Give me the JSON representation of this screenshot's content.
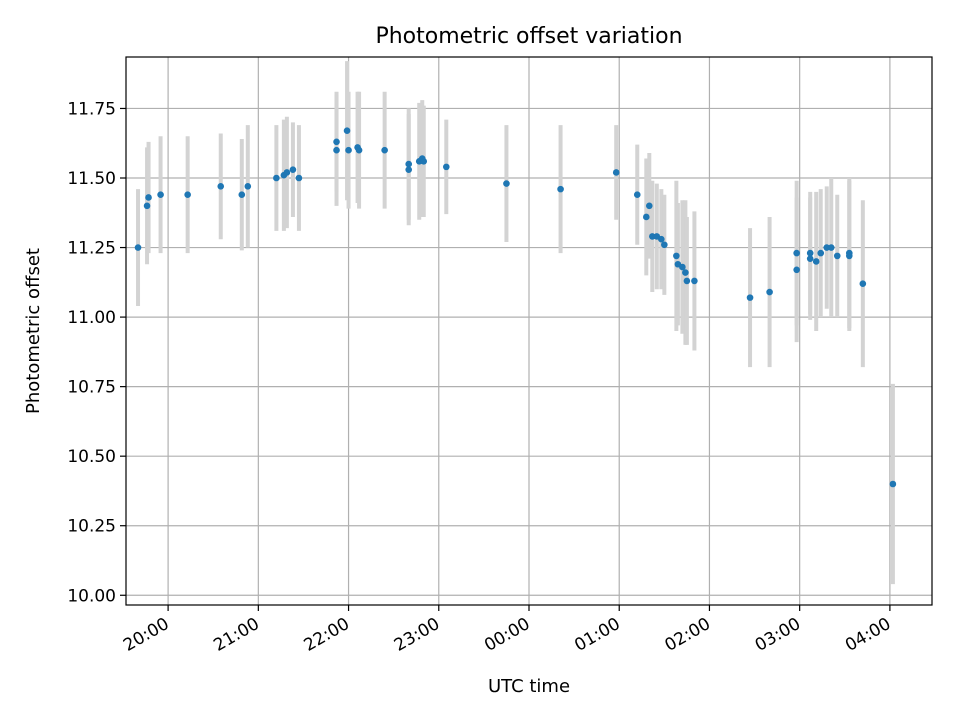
{
  "chart_data": {
    "type": "scatter",
    "title": "Photometric offset variation",
    "xlabel": "UTC time",
    "ylabel": "Photometric offset",
    "grid": true,
    "legend": "none",
    "xlim": [
      "19:32",
      "04:28"
    ],
    "ylim": [
      9.965,
      11.935
    ],
    "xticks": [
      "20:00",
      "21:00",
      "22:00",
      "23:00",
      "00:00",
      "01:00",
      "02:00",
      "03:00",
      "04:00"
    ],
    "yticks": [
      "10.00",
      "10.25",
      "10.50",
      "10.75",
      "11.00",
      "11.25",
      "11.50",
      "11.75"
    ],
    "colors": {
      "points": "#1f77b4",
      "errorbars": "#d3d3d3",
      "grid": "#b0b0b0"
    },
    "series": [
      {
        "x": [
          "19:40",
          "19:46",
          "19:47",
          "19:55",
          "20:13",
          "20:35",
          "20:49",
          "20:53",
          "21:12",
          "21:17",
          "21:19",
          "21:23",
          "21:27",
          "21:52",
          "21:52",
          "21:59",
          "22:00",
          "22:06",
          "22:07",
          "22:24",
          "22:40",
          "22:40",
          "22:47",
          "22:49",
          "22:50",
          "23:05",
          "23:45",
          "00:21",
          "00:58",
          "01:12",
          "01:18",
          "01:20",
          "01:22",
          "01:25",
          "01:28",
          "01:30",
          "01:38",
          "01:39",
          "01:42",
          "01:44",
          "01:45",
          "01:50",
          "02:27",
          "02:40",
          "02:58",
          "02:58",
          "03:07",
          "03:07",
          "03:11",
          "03:14",
          "03:18",
          "03:21",
          "03:25",
          "03:33",
          "03:33",
          "03:42",
          "04:02"
        ],
        "y": [
          11.25,
          11.4,
          11.43,
          11.44,
          11.44,
          11.47,
          11.44,
          11.47,
          11.5,
          11.51,
          11.52,
          11.53,
          11.5,
          11.63,
          11.6,
          11.67,
          11.6,
          11.61,
          11.6,
          11.6,
          11.55,
          11.53,
          11.56,
          11.57,
          11.56,
          11.54,
          11.48,
          11.46,
          11.52,
          11.44,
          11.36,
          11.4,
          11.29,
          11.29,
          11.28,
          11.26,
          11.22,
          11.19,
          11.18,
          11.16,
          11.13,
          11.13,
          11.07,
          11.09,
          11.23,
          11.17,
          11.21,
          11.23,
          11.2,
          11.23,
          11.25,
          11.25,
          11.22,
          11.23,
          11.22,
          11.12,
          10.4
        ],
        "yerr": [
          0.21,
          0.21,
          0.2,
          0.21,
          0.21,
          0.19,
          0.2,
          0.22,
          0.19,
          0.2,
          0.2,
          0.17,
          0.19,
          0.18,
          0.2,
          0.25,
          0.21,
          0.2,
          0.21,
          0.21,
          0.2,
          0.2,
          0.21,
          0.21,
          0.2,
          0.17,
          0.21,
          0.23,
          0.17,
          0.18,
          0.21,
          0.19,
          0.2,
          0.19,
          0.18,
          0.18,
          0.27,
          0.22,
          0.24,
          0.26,
          0.23,
          0.25,
          0.25,
          0.27,
          0.26,
          0.26,
          0.22,
          0.22,
          0.25,
          0.23,
          0.22,
          0.25,
          0.22,
          0.27,
          0.27,
          0.3,
          0.36
        ]
      }
    ]
  }
}
